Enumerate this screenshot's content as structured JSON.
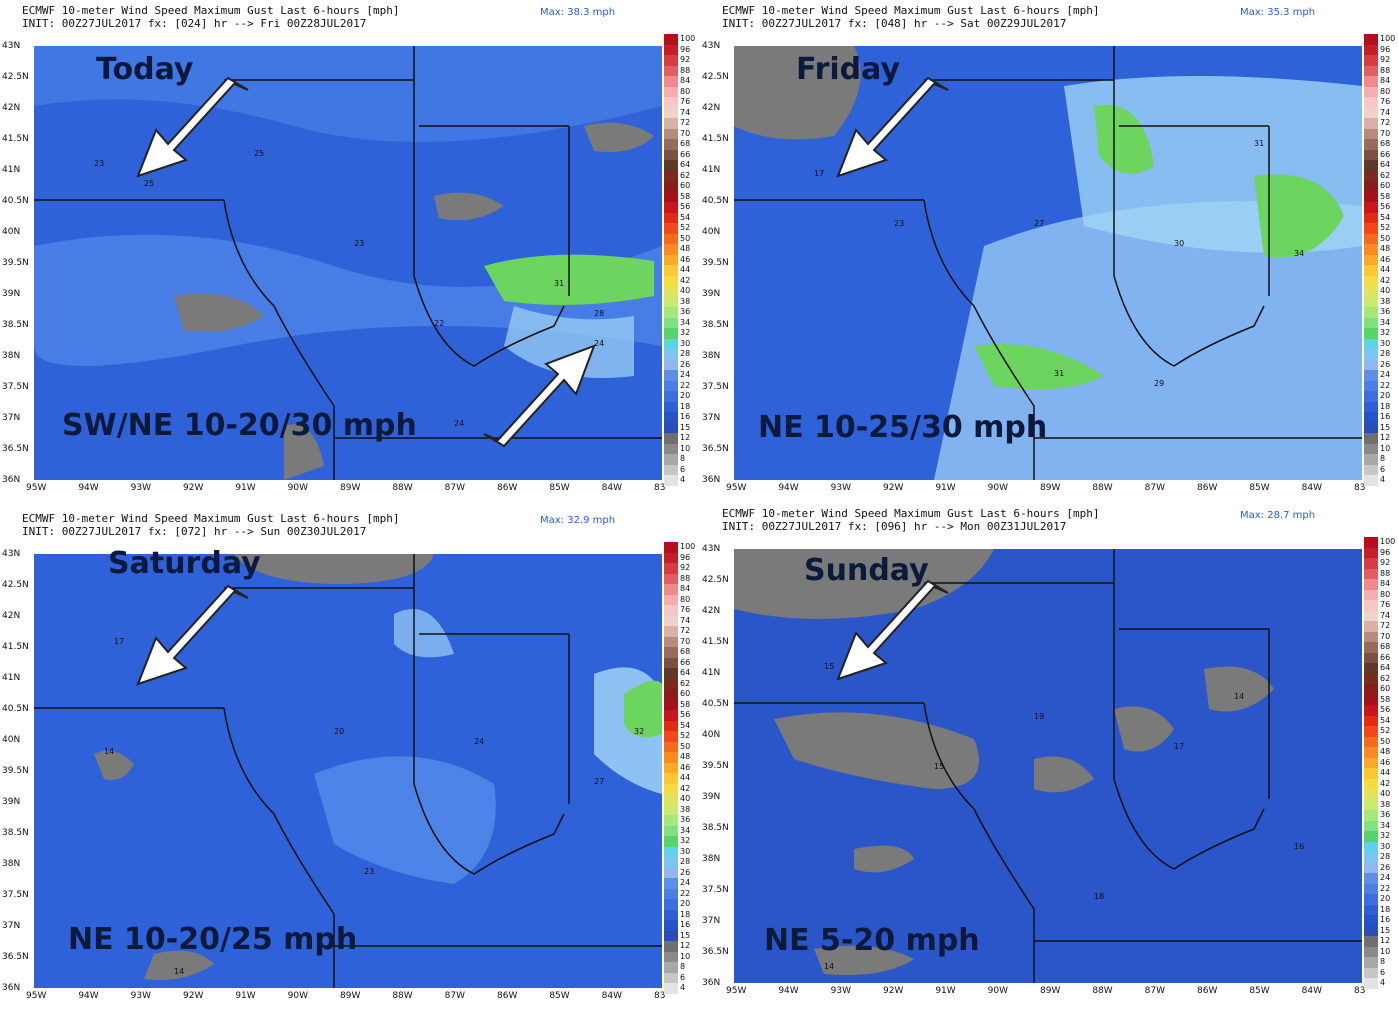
{
  "panels": [
    {
      "id": "p1",
      "header_line1": "ECMWF 10-meter Wind Speed Maximum Gust Last 6-hours [mph]",
      "header_line2": "INIT: 00Z27JUL2017 fx: [024] hr --> Fri 00Z28JUL2017",
      "max_label": "Max: 38.3 mph",
      "day_label": "Today",
      "range_label": "SW/NE 10-20/30 mph",
      "arrows": [
        "arrow-sw",
        "arrow-ne"
      ]
    },
    {
      "id": "p2",
      "header_line1": "ECMWF 10-meter Wind Speed Maximum Gust Last 6-hours [mph]",
      "header_line2": "INIT: 00Z27JUL2017 fx: [048] hr --> Sat 00Z29JUL2017",
      "max_label": "Max: 35.3 mph",
      "day_label": "Friday",
      "range_label": "NE 10-25/30 mph",
      "arrows": [
        "arrow-sw"
      ]
    },
    {
      "id": "p3",
      "header_line1": "ECMWF 10-meter Wind Speed Maximum Gust Last 6-hours [mph]",
      "header_line2": "INIT: 00Z27JUL2017 fx: [072] hr --> Sun 00Z30JUL2017",
      "max_label": "Max: 32.9 mph",
      "day_label": "Saturday",
      "range_label": "NE 10-20/25 mph",
      "arrows": [
        "arrow-sw"
      ]
    },
    {
      "id": "p4",
      "header_line1": "ECMWF 10-meter Wind Speed Maximum Gust Last 6-hours [mph]",
      "header_line2": "INIT: 00Z27JUL2017 fx: [096] hr --> Mon 00Z31JUL2017",
      "max_label": "Max: 28.7 mph",
      "day_label": "Sunday",
      "range_label": "NE 5-20 mph",
      "arrows": [
        "arrow-sw"
      ]
    }
  ],
  "latitudes": [
    "43N",
    "42.5N",
    "42N",
    "41.5N",
    "41N",
    "40.5N",
    "40N",
    "39.5N",
    "39N",
    "38.5N",
    "38N",
    "37.5N",
    "37N",
    "36.5N",
    "36N"
  ],
  "longitudes": [
    "95W",
    "94W",
    "93W",
    "92W",
    "91W",
    "90W",
    "89W",
    "88W",
    "87W",
    "86W",
    "85W",
    "84W",
    "83"
  ],
  "colorbar": {
    "labels": [
      "100",
      "96",
      "92",
      "88",
      "84",
      "80",
      "76",
      "74",
      "72",
      "70",
      "68",
      "66",
      "64",
      "62",
      "60",
      "58",
      "56",
      "54",
      "52",
      "50",
      "48",
      "46",
      "44",
      "42",
      "40",
      "38",
      "36",
      "34",
      "32",
      "30",
      "28",
      "26",
      "24",
      "22",
      "20",
      "18",
      "16",
      "15",
      "12",
      "10",
      "8",
      "6",
      "4"
    ],
    "colors": [
      "#b40f1a",
      "#c61e28",
      "#d63c44",
      "#e35d63",
      "#ee8a8c",
      "#f4aeb0",
      "#f7c6c7",
      "#f0d2cc",
      "#d9b1a6",
      "#b98b7d",
      "#9a6b5c",
      "#7c4f40",
      "#5f382b",
      "#7a2b1d",
      "#8a1c1a",
      "#a4111a",
      "#c8141b",
      "#e32a13",
      "#f2491a",
      "#f66a1d",
      "#f98b22",
      "#fbaa28",
      "#fbc831",
      "#f4dc40",
      "#dfe35d",
      "#c7ea6f",
      "#a4e879",
      "#7fe17f",
      "#56d46a",
      "#5fd2e8",
      "#7fc5f2",
      "#93b6ef",
      "#5f8ee9",
      "#4d7ee3",
      "#3d6ee0",
      "#2f5ed8",
      "#2753c9",
      "#2a4db7",
      "#6f6f6f",
      "#8a8a8a",
      "#a8a8a8",
      "#c6c6c6",
      "#e3e3e3"
    ]
  }
}
